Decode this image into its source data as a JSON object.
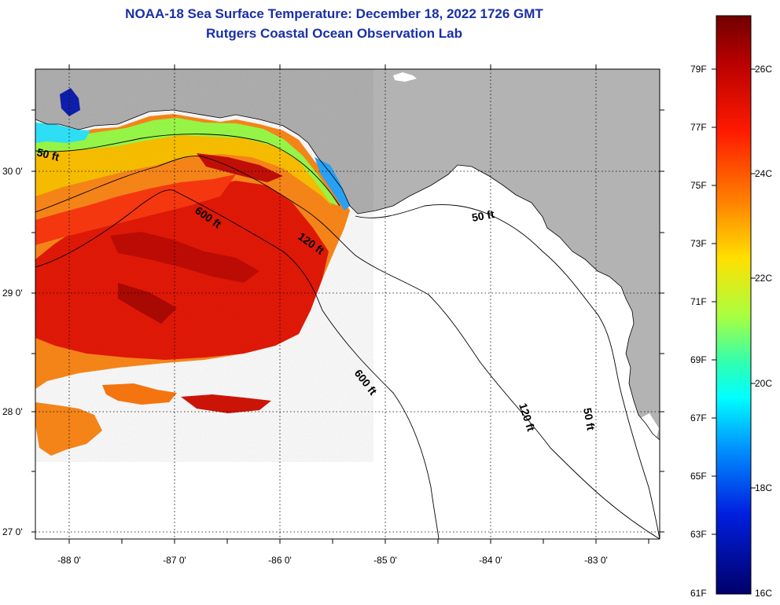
{
  "title": {
    "line1": "NOAA-18 Sea Surface Temperature:  December 18, 2022 1726 GMT",
    "line2": "Rutgers Coastal Ocean Observation Lab"
  },
  "map": {
    "lat_labels": [
      "30 0'",
      "29 0'",
      "28 0'",
      "27 0'"
    ],
    "lon_labels": [
      "-88 0'",
      "-87 0'",
      "-86 0'",
      "-85 0'",
      "-84 0'",
      "-83 0'"
    ],
    "contour_labels": [
      {
        "name": "50ft-west",
        "text": "50 ft"
      },
      {
        "name": "600ft-north",
        "text": "600 ft"
      },
      {
        "name": "120ft-north",
        "text": "120 ft"
      },
      {
        "name": "50ft-east",
        "text": "50 ft"
      },
      {
        "name": "600ft-south",
        "text": "600 ft"
      },
      {
        "name": "120ft-south",
        "text": "120 ft"
      },
      {
        "name": "50ft-south",
        "text": "50 ft"
      }
    ],
    "colors": {
      "land": "#b3b3b3",
      "water": "#ffffff"
    }
  },
  "colorbar": {
    "fahrenheit": [
      "79F",
      "77F",
      "75F",
      "73F",
      "71F",
      "69F",
      "67F",
      "65F",
      "63F",
      "61F"
    ],
    "celsius": [
      "26C",
      "24C",
      "22C",
      "20C",
      "18C",
      "16C"
    ],
    "colors": [
      "#7a0000",
      "#d40000",
      "#ff3a00",
      "#ff8a00",
      "#ffd400",
      "#c8ff30",
      "#5cff8c",
      "#00ffff",
      "#00a8ff",
      "#0040ff",
      "#0000b8",
      "#00007a"
    ]
  }
}
